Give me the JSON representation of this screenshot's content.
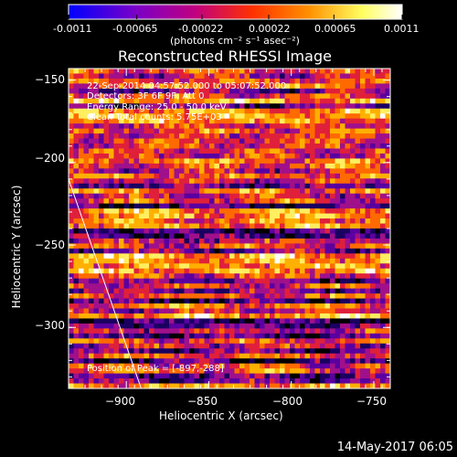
{
  "colorbar": {
    "tick_labels": [
      "-0.0011",
      "-0.00065",
      "-0.00022",
      "0.00022",
      "0.00065",
      "0.0011"
    ],
    "ticks": [
      -0.0011,
      -0.00065,
      -0.00022,
      0.00022,
      0.00065,
      0.0011
    ],
    "range": [
      -0.0011,
      0.0011
    ],
    "unit_label": "(photons cm⁻² s⁻¹ asec⁻²)",
    "colors": [
      "#0000ff",
      "#7a00c8",
      "#c00080",
      "#ff3000",
      "#ff9000",
      "#ffff60",
      "#ffffff"
    ]
  },
  "chart_data": {
    "type": "heatmap",
    "title": "Reconstructed RHESSI Image",
    "xlabel": "Heliocentric X (arcsec)",
    "ylabel": "Heliocentric Y (arcsec)",
    "xlim": [
      -935,
      -740
    ],
    "ylim": [
      -337,
      -143
    ],
    "x_ticks": [
      -900,
      -850,
      -800,
      -750
    ],
    "x_tick_labels": [
      "−900",
      "−850",
      "−800",
      "−750"
    ],
    "y_ticks": [
      -150,
      -200,
      -250,
      -300
    ],
    "y_tick_labels": [
      "−150",
      "−200",
      "−250",
      "−300"
    ],
    "limb_line": [
      [
        -935,
        -210
      ],
      [
        -891,
        -337
      ]
    ],
    "peak_position": [
      -897,
      -288
    ]
  },
  "info": {
    "time_range": "22-Sep-2014 04:57:52.000 to 05:07:52.000",
    "detectors": "Detectors: 3F 6F 9F, Att 0",
    "energy": "Energy Range: 25.0 - 50.0 keV",
    "clean": "Clean     Total counts: 5.75E+03",
    "peak": "Position of Peak = [-897,-288]"
  },
  "footer": "14-May-2017 06:05"
}
